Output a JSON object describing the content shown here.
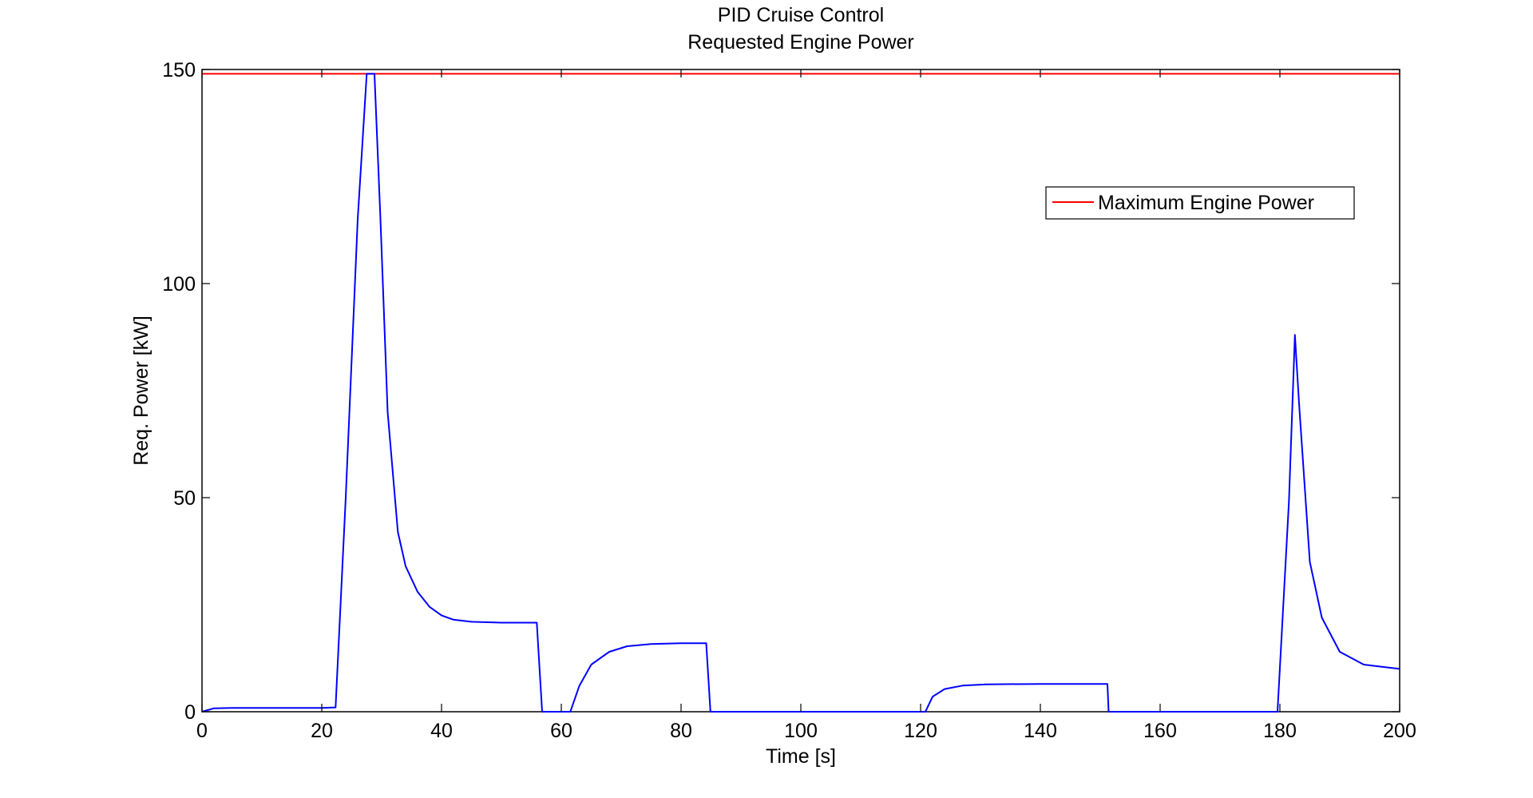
{
  "chart_data": {
    "type": "line",
    "title": "PID Cruise Control",
    "subtitle": "Requested Engine Power",
    "xlabel": "Time [s]",
    "ylabel": "Req. Power [kW]",
    "xlim": [
      0,
      200
    ],
    "ylim": [
      0,
      150
    ],
    "xticks": [
      0,
      20,
      40,
      60,
      80,
      100,
      120,
      140,
      160,
      180,
      200
    ],
    "yticks": [
      0,
      50,
      100,
      150
    ],
    "grid": false,
    "legend_position": "top-right",
    "legend": [
      "Maximum Engine Power"
    ],
    "series": [
      {
        "name": "Maximum Engine Power",
        "color": "#ff0000",
        "x": [
          0,
          200
        ],
        "y": [
          149,
          149
        ]
      },
      {
        "color": "#0000ff",
        "x": [
          0,
          2,
          5,
          10,
          15,
          20,
          22.3,
          24,
          26,
          27.5,
          28.8,
          29.8,
          31,
          32.7,
          34,
          36,
          38,
          40,
          42,
          45,
          50,
          55.9,
          56.8,
          61.5,
          63,
          65,
          68,
          71,
          75,
          80,
          84.2,
          84.9,
          100,
          120.8,
          122,
          124,
          127,
          131,
          140,
          151.2,
          151.4,
          165,
          179.6,
          181.5,
          182.5,
          183.2,
          185,
          187,
          190,
          194,
          200
        ],
        "y": [
          0,
          0.8,
          0.9,
          0.9,
          0.9,
          0.9,
          1,
          50,
          115,
          149,
          149,
          115,
          70,
          42,
          34,
          28,
          24.5,
          22.5,
          21.5,
          21,
          20.8,
          20.8,
          0,
          0,
          6,
          11,
          14,
          15.3,
          15.8,
          16,
          16,
          0,
          0,
          0,
          3.5,
          5.3,
          6.1,
          6.4,
          6.5,
          6.5,
          0,
          0,
          0,
          49,
          88,
          72,
          35,
          22,
          14,
          11,
          10
        ]
      }
    ]
  }
}
